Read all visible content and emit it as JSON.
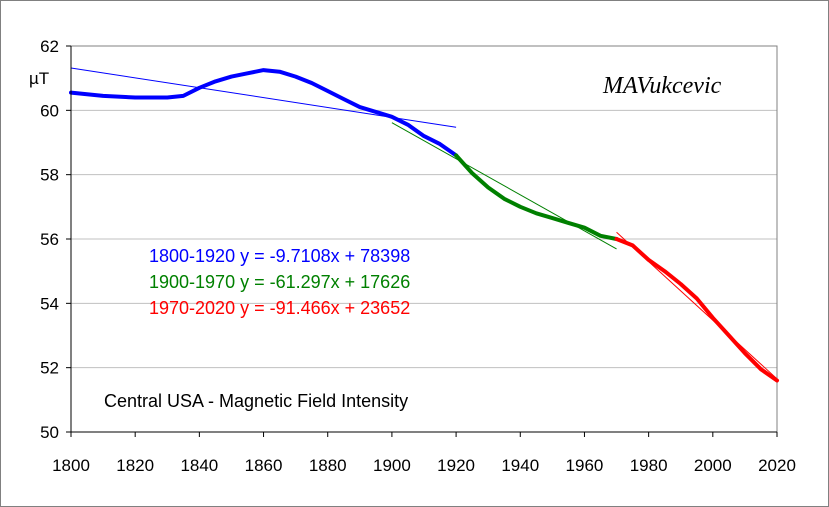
{
  "chart_data": {
    "type": "line",
    "title": "Central USA - Magnetic Field Intensity",
    "ylabel": "µT",
    "watermark": "MAVukcevic",
    "xlim": [
      1800,
      2020
    ],
    "ylim": [
      50,
      62
    ],
    "x_ticks": [
      1800,
      1820,
      1840,
      1860,
      1880,
      1900,
      1920,
      1940,
      1960,
      1980,
      2000,
      2020
    ],
    "y_ticks": [
      50,
      52,
      54,
      56,
      58,
      60,
      62
    ],
    "grid": "horizontal",
    "series": [
      {
        "color": "#0000ff",
        "x": [
          1800,
          1810,
          1820,
          1830,
          1835,
          1840,
          1845,
          1850,
          1855,
          1860,
          1865,
          1870,
          1875,
          1880,
          1885,
          1890,
          1895,
          1900,
          1905,
          1910,
          1915,
          1920
        ],
        "y": [
          60.55,
          60.45,
          60.4,
          60.4,
          60.45,
          60.7,
          60.9,
          61.05,
          61.15,
          61.25,
          61.2,
          61.05,
          60.85,
          60.6,
          60.35,
          60.1,
          59.95,
          59.8,
          59.55,
          59.2,
          58.95,
          58.6
        ]
      },
      {
        "color": "#008000",
        "x": [
          1920,
          1925,
          1930,
          1935,
          1940,
          1945,
          1950,
          1955,
          1960,
          1965,
          1970
        ],
        "y": [
          58.6,
          58.05,
          57.6,
          57.25,
          57.0,
          56.8,
          56.65,
          56.5,
          56.35,
          56.1,
          56.0
        ]
      },
      {
        "color": "#ff0000",
        "x": [
          1970,
          1975,
          1980,
          1985,
          1990,
          1995,
          2000,
          2005,
          2010,
          2015,
          2020
        ],
        "y": [
          56.0,
          55.8,
          55.35,
          55.0,
          54.6,
          54.15,
          53.55,
          53.0,
          52.45,
          51.95,
          51.6
        ]
      }
    ],
    "trendlines": [
      {
        "label": "1800-1920",
        "equation": "y = -9.7108x + 78398",
        "color": "#0000ff",
        "x_range": [
          1800,
          1920
        ],
        "slope": -9.7108,
        "intercept": 78398
      },
      {
        "label": "1900-1970",
        "equation": "y = -61.297x + 17626",
        "color": "#008000",
        "x_range": [
          1900,
          1970
        ],
        "slope": -61.297,
        "intercept": 17626
      },
      {
        "label": "1970-2020",
        "equation": "y = -91.466x + 23652",
        "color": "#ff0000",
        "x_range": [
          1970,
          2020
        ],
        "slope": -91.466,
        "intercept": 23652
      }
    ]
  }
}
